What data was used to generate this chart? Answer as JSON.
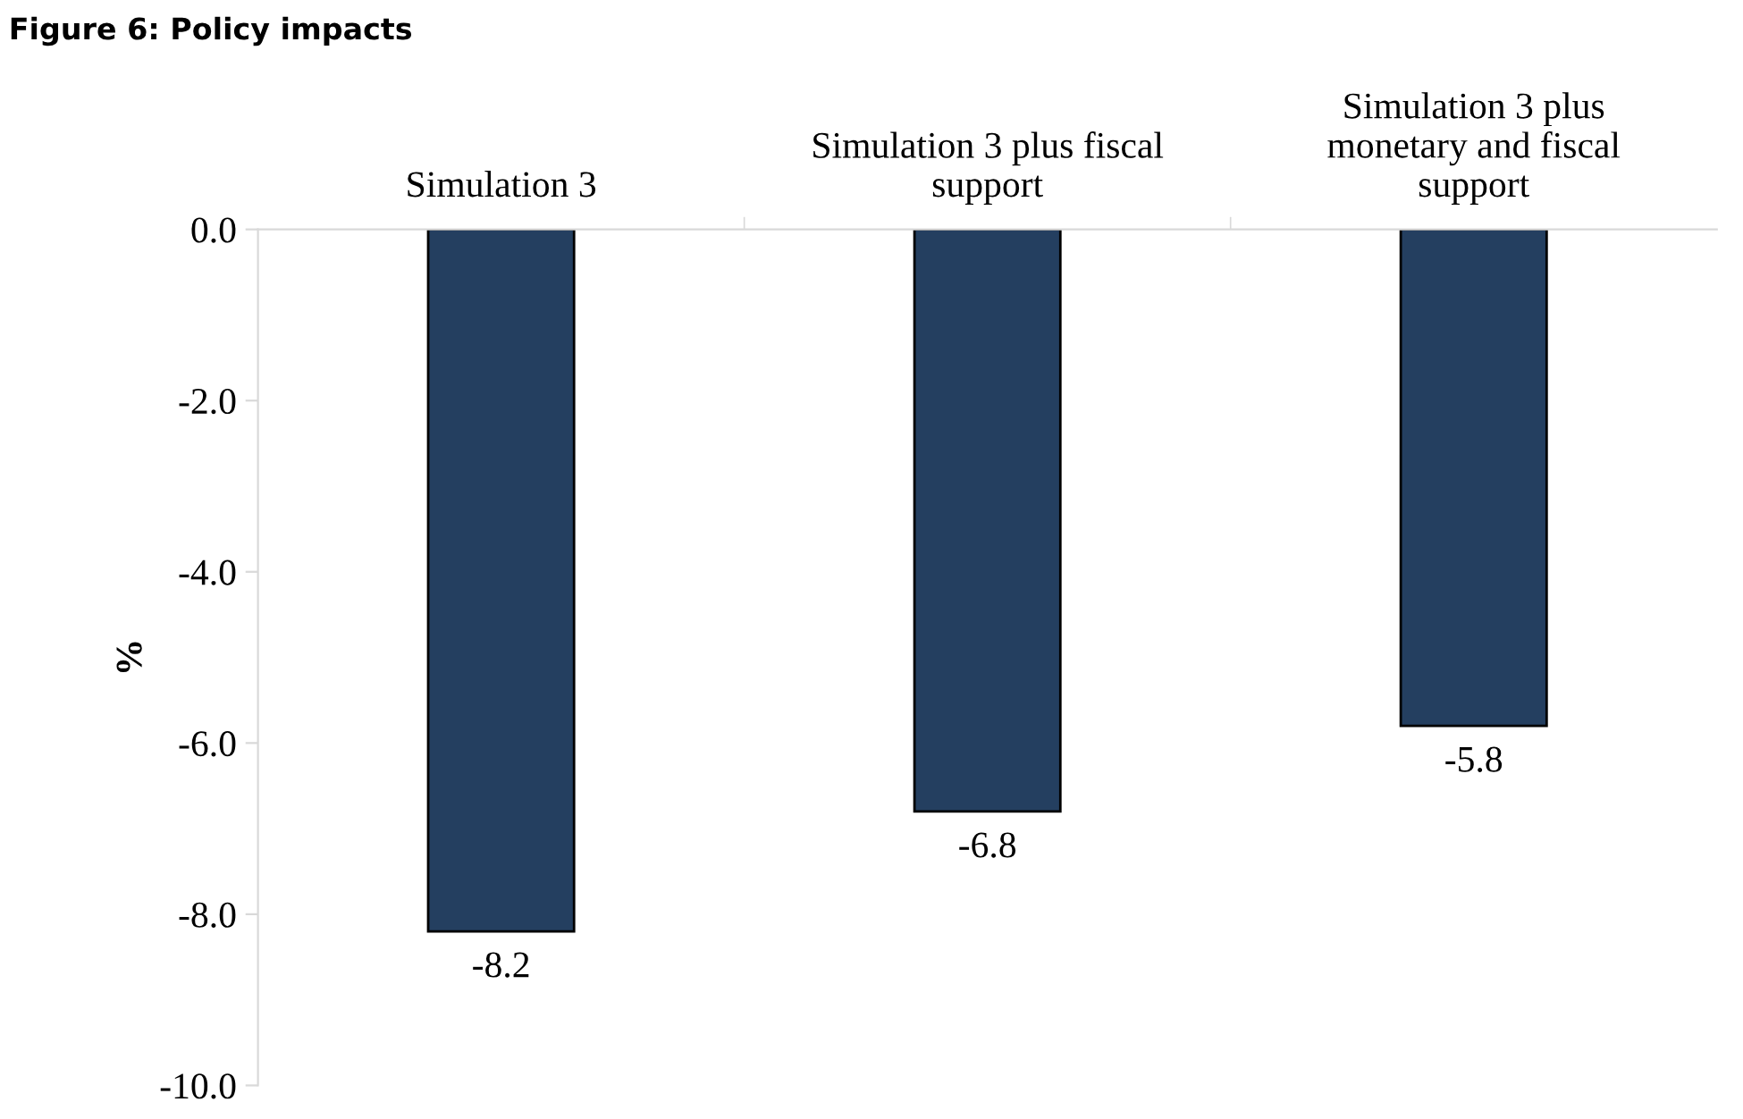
{
  "chart_data": {
    "type": "bar",
    "title": "Figure 6: Policy impacts",
    "ylabel": "%",
    "categories": [
      "Simulation 3",
      "Simulation 3 plus fiscal\nsupport",
      "Simulation 3 plus\nmonetary and fiscal\nsupport"
    ],
    "values": [
      -8.2,
      -6.8,
      -5.8
    ],
    "color": "#243f60",
    "data_labels": true,
    "ylim": [
      -10,
      0
    ],
    "yticks": [
      {
        "value": 0,
        "label": "0.0"
      },
      {
        "value": -2,
        "label": "-2.0"
      },
      {
        "value": -4,
        "label": "-4.0"
      },
      {
        "value": -6,
        "label": "-6.0"
      },
      {
        "value": -8,
        "label": "-8.0"
      },
      {
        "value": -10,
        "label": "-10.0"
      }
    ],
    "grid": false,
    "legend": false
  }
}
